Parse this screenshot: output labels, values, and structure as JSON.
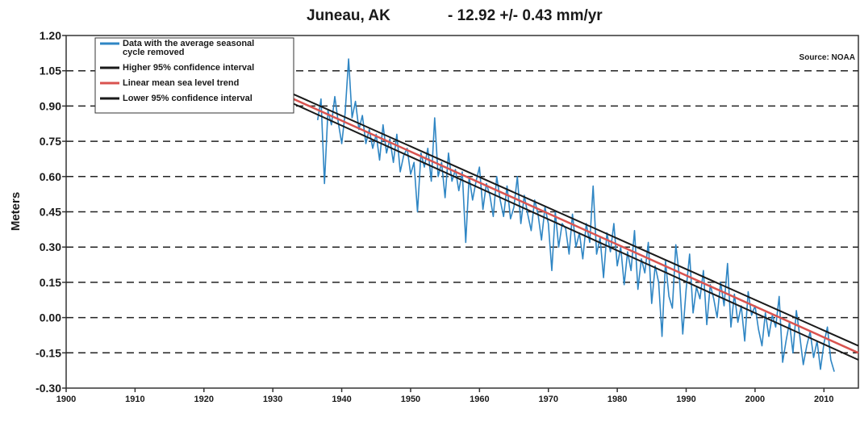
{
  "chart_data": {
    "type": "line",
    "title": {
      "station": "Juneau, AK",
      "trend": "- 12.92 +/- 0.43 mm/yr"
    },
    "source": "Source: NOAA",
    "xlabel": "",
    "ylabel": "Meters",
    "xlim": [
      1900,
      2015
    ],
    "ylim": [
      -0.3,
      1.2
    ],
    "xticks": [
      "1900",
      "1910",
      "1920",
      "1930",
      "1940",
      "1950",
      "1960",
      "1970",
      "1980",
      "1990",
      "2000",
      "2010"
    ],
    "yticks": [
      "1.20",
      "1.05",
      "0.90",
      "0.75",
      "0.60",
      "0.45",
      "0.30",
      "0.15",
      "0.00",
      "-0.15",
      "-0.30"
    ],
    "grid": "horizontal-dashed",
    "legend_position": "top-left",
    "legend": [
      {
        "label": "Data with the average seasonal cycle removed",
        "label_lines": [
          "Data with the average seasonal",
          "cycle removed"
        ],
        "color": "#2f86c4"
      },
      {
        "label": "Higher 95% confidence interval",
        "label_lines": [
          "Higher 95% confidence interval"
        ],
        "color": "#1a1a1a"
      },
      {
        "label": "Linear mean sea level trend",
        "label_lines": [
          "Linear mean sea level trend"
        ],
        "color": "#d9534f"
      },
      {
        "label": "Lower 95% confidence interval",
        "label_lines": [
          "Lower 95% confidence interval"
        ],
        "color": "#1a1a1a"
      }
    ],
    "series": [
      {
        "name": "Data with the average seasonal cycle removed",
        "color": "#2f86c4",
        "x": [
          1936.5,
          1937.0,
          1937.5,
          1938.0,
          1938.5,
          1939.0,
          1939.5,
          1940.0,
          1940.5,
          1941.0,
          1941.5,
          1942.0,
          1942.5,
          1943.0,
          1943.5,
          1944.0,
          1944.5,
          1945.0,
          1945.5,
          1946.0,
          1946.5,
          1947.0,
          1947.5,
          1948.0,
          1948.5,
          1949.0,
          1949.5,
          1950.0,
          1950.5,
          1951.0,
          1951.5,
          1952.0,
          1952.5,
          1953.0,
          1953.5,
          1954.0,
          1954.5,
          1955.0,
          1955.5,
          1956.0,
          1956.5,
          1957.0,
          1957.5,
          1958.0,
          1958.5,
          1959.0,
          1959.5,
          1960.0,
          1960.5,
          1961.0,
          1961.5,
          1962.0,
          1962.5,
          1963.0,
          1963.5,
          1964.0,
          1964.5,
          1965.0,
          1965.5,
          1966.0,
          1966.5,
          1967.0,
          1967.5,
          1968.0,
          1968.5,
          1969.0,
          1969.5,
          1970.0,
          1970.5,
          1971.0,
          1971.5,
          1972.0,
          1972.5,
          1973.0,
          1973.5,
          1974.0,
          1974.5,
          1975.0,
          1975.5,
          1976.0,
          1976.5,
          1977.0,
          1977.5,
          1978.0,
          1978.5,
          1979.0,
          1979.5,
          1980.0,
          1980.5,
          1981.0,
          1981.5,
          1982.0,
          1982.5,
          1983.0,
          1983.5,
          1984.0,
          1984.5,
          1985.0,
          1985.5,
          1986.0,
          1986.5,
          1987.0,
          1987.5,
          1988.0,
          1988.5,
          1989.0,
          1989.5,
          1990.0,
          1990.5,
          1991.0,
          1991.5,
          1992.0,
          1992.5,
          1993.0,
          1993.5,
          1994.0,
          1994.5,
          1995.0,
          1995.5,
          1996.0,
          1996.5,
          1997.0,
          1997.5,
          1998.0,
          1998.5,
          1999.0,
          1999.5,
          2000.0,
          2000.5,
          2001.0,
          2001.5,
          2002.0,
          2002.5,
          2003.0,
          2003.5,
          2004.0,
          2004.5,
          2005.0,
          2005.5,
          2006.0,
          2006.5,
          2007.0,
          2007.5,
          2008.0,
          2008.5,
          2009.0,
          2009.5,
          2010.0,
          2010.5,
          2011.0,
          2011.5
        ],
        "y": [
          0.84,
          0.93,
          0.57,
          0.88,
          0.82,
          0.94,
          0.83,
          0.74,
          0.87,
          1.1,
          0.85,
          0.92,
          0.8,
          0.86,
          0.74,
          0.8,
          0.72,
          0.78,
          0.67,
          0.82,
          0.7,
          0.76,
          0.66,
          0.78,
          0.62,
          0.69,
          0.72,
          0.61,
          0.66,
          0.45,
          0.7,
          0.64,
          0.72,
          0.58,
          0.85,
          0.6,
          0.66,
          0.51,
          0.7,
          0.58,
          0.63,
          0.54,
          0.62,
          0.32,
          0.6,
          0.5,
          0.58,
          0.64,
          0.46,
          0.57,
          0.52,
          0.43,
          0.6,
          0.5,
          0.43,
          0.56,
          0.42,
          0.47,
          0.6,
          0.4,
          0.52,
          0.44,
          0.37,
          0.5,
          0.44,
          0.33,
          0.47,
          0.4,
          0.2,
          0.45,
          0.3,
          0.4,
          0.38,
          0.27,
          0.44,
          0.3,
          0.36,
          0.25,
          0.4,
          0.32,
          0.56,
          0.27,
          0.34,
          0.17,
          0.36,
          0.28,
          0.4,
          0.22,
          0.3,
          0.14,
          0.28,
          0.2,
          0.37,
          0.12,
          0.25,
          0.19,
          0.32,
          0.06,
          0.22,
          0.15,
          -0.08,
          0.24,
          0.09,
          0.04,
          0.31,
          0.18,
          -0.07,
          0.12,
          0.27,
          0.02,
          0.13,
          0.08,
          0.2,
          -0.03,
          0.14,
          0.08,
          0.0,
          0.15,
          0.05,
          0.23,
          -0.04,
          0.1,
          -0.02,
          0.05,
          -0.1,
          0.11,
          0.01,
          0.05,
          -0.05,
          -0.12,
          0.02,
          -0.08,
          0.01,
          -0.04,
          0.09,
          -0.19,
          -0.1,
          -0.02,
          -0.15,
          0.03,
          -0.08,
          -0.2,
          -0.12,
          -0.06,
          -0.17,
          -0.1,
          -0.22,
          -0.11,
          -0.04,
          -0.18,
          -0.23
        ]
      },
      {
        "name": "Higher 95% confidence interval",
        "color": "#1a1a1a",
        "x": [
          1933,
          2015
        ],
        "y": [
          0.95,
          -0.12
        ]
      },
      {
        "name": "Linear mean sea level trend",
        "color": "#d9534f",
        "x": [
          1933,
          2015
        ],
        "y": [
          0.93,
          -0.15
        ]
      },
      {
        "name": "Lower 95% confidence interval",
        "color": "#1a1a1a",
        "x": [
          1933,
          2015
        ],
        "y": [
          0.91,
          -0.18
        ]
      }
    ]
  }
}
